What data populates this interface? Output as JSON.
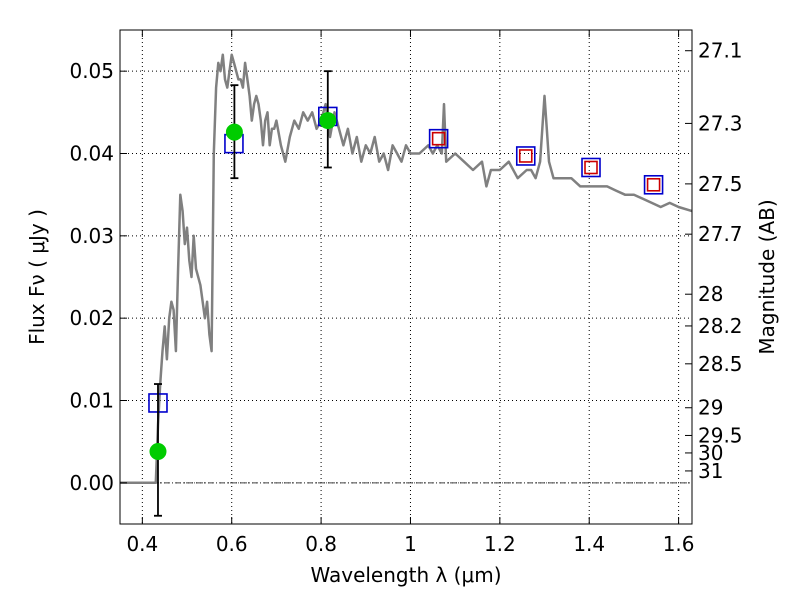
{
  "chart_data": {
    "type": "line",
    "xlabel": "Wavelength  λ (μm)",
    "ylabel": "Flux  Fν  ( μJy )",
    "ylabel_right": "Magnitude (AB)",
    "xlim": [
      0.35,
      1.63
    ],
    "ylim": [
      -0.005,
      0.055
    ],
    "grid": true,
    "x_ticks": [
      {
        "value": 0.4,
        "label": "0.4"
      },
      {
        "value": 0.6,
        "label": "0.6"
      },
      {
        "value": 0.8,
        "label": "0.8"
      },
      {
        "value": 1.0,
        "label": "1"
      },
      {
        "value": 1.2,
        "label": "1.2"
      },
      {
        "value": 1.4,
        "label": "1.4"
      },
      {
        "value": 1.6,
        "label": "1.6"
      }
    ],
    "y_ticks": [
      {
        "value": 0.0,
        "label": "0.00"
      },
      {
        "value": 0.01,
        "label": "0.01"
      },
      {
        "value": 0.02,
        "label": "0.02"
      },
      {
        "value": 0.03,
        "label": "0.03"
      },
      {
        "value": 0.04,
        "label": "0.04"
      },
      {
        "value": 0.05,
        "label": "0.05"
      }
    ],
    "right_ticks": [
      {
        "mag": 27.1,
        "label": "27.1"
      },
      {
        "mag": 27.3,
        "label": "27.3"
      },
      {
        "mag": 27.5,
        "label": "27.5"
      },
      {
        "mag": 27.7,
        "label": "27.7"
      },
      {
        "mag": 28,
        "label": "28"
      },
      {
        "mag": 28.2,
        "label": "28.2"
      },
      {
        "mag": 28.5,
        "label": "28.5"
      },
      {
        "mag": 29,
        "label": "29"
      },
      {
        "mag": 29.5,
        "label": "29.5"
      },
      {
        "mag": 30,
        "label": "30"
      },
      {
        "mag": 31,
        "label": "31"
      }
    ],
    "series": [
      {
        "kind": "model-spectrum",
        "color": "#808080",
        "x": [
          0.35,
          0.43,
          0.435,
          0.44,
          0.445,
          0.45,
          0.455,
          0.46,
          0.465,
          0.47,
          0.475,
          0.48,
          0.485,
          0.49,
          0.495,
          0.5,
          0.505,
          0.51,
          0.515,
          0.52,
          0.53,
          0.54,
          0.545,
          0.55,
          0.555,
          0.56,
          0.565,
          0.57,
          0.575,
          0.58,
          0.585,
          0.59,
          0.595,
          0.6,
          0.605,
          0.61,
          0.615,
          0.62,
          0.625,
          0.63,
          0.635,
          0.64,
          0.645,
          0.65,
          0.655,
          0.66,
          0.665,
          0.67,
          0.675,
          0.68,
          0.685,
          0.69,
          0.695,
          0.7,
          0.71,
          0.72,
          0.73,
          0.74,
          0.75,
          0.76,
          0.77,
          0.78,
          0.79,
          0.8,
          0.81,
          0.82,
          0.83,
          0.84,
          0.85,
          0.86,
          0.87,
          0.88,
          0.89,
          0.9,
          0.91,
          0.92,
          0.93,
          0.94,
          0.95,
          0.96,
          0.97,
          0.98,
          0.99,
          1.0,
          1.02,
          1.04,
          1.05,
          1.06,
          1.07,
          1.075,
          1.08,
          1.1,
          1.12,
          1.14,
          1.16,
          1.17,
          1.18,
          1.2,
          1.22,
          1.24,
          1.26,
          1.27,
          1.28,
          1.29,
          1.3,
          1.305,
          1.31,
          1.32,
          1.34,
          1.36,
          1.38,
          1.4,
          1.42,
          1.44,
          1.46,
          1.48,
          1.5,
          1.52,
          1.54,
          1.56,
          1.58,
          1.6,
          1.63
        ],
        "y": [
          0.0,
          0.0,
          0.007,
          0.012,
          0.016,
          0.019,
          0.015,
          0.02,
          0.022,
          0.021,
          0.016,
          0.026,
          0.035,
          0.033,
          0.029,
          0.031,
          0.027,
          0.025,
          0.03,
          0.026,
          0.024,
          0.02,
          0.022,
          0.018,
          0.016,
          0.04,
          0.048,
          0.051,
          0.05,
          0.052,
          0.049,
          0.048,
          0.05,
          0.052,
          0.051,
          0.05,
          0.049,
          0.049,
          0.048,
          0.051,
          0.049,
          0.047,
          0.044,
          0.046,
          0.047,
          0.046,
          0.044,
          0.041,
          0.044,
          0.045,
          0.041,
          0.043,
          0.043,
          0.044,
          0.041,
          0.039,
          0.042,
          0.044,
          0.043,
          0.045,
          0.044,
          0.045,
          0.043,
          0.044,
          0.046,
          0.042,
          0.045,
          0.043,
          0.041,
          0.043,
          0.04,
          0.042,
          0.039,
          0.041,
          0.04,
          0.042,
          0.039,
          0.04,
          0.038,
          0.041,
          0.04,
          0.039,
          0.041,
          0.04,
          0.04,
          0.041,
          0.04,
          0.041,
          0.04,
          0.046,
          0.039,
          0.04,
          0.039,
          0.038,
          0.039,
          0.036,
          0.038,
          0.038,
          0.039,
          0.037,
          0.038,
          0.038,
          0.037,
          0.039,
          0.047,
          0.043,
          0.039,
          0.037,
          0.037,
          0.037,
          0.036,
          0.036,
          0.036,
          0.036,
          0.0355,
          0.035,
          0.035,
          0.0345,
          0.034,
          0.0335,
          0.034,
          0.0335,
          0.033
        ]
      },
      {
        "kind": "model-photometry",
        "marker": "open-square",
        "color": "#0000cc",
        "x": [
          0.435,
          0.605,
          0.815,
          1.063,
          1.258,
          1.404,
          1.544
        ],
        "y": [
          0.0097,
          0.0412,
          0.0445,
          0.0418,
          0.0397,
          0.0383,
          0.0362
        ]
      },
      {
        "kind": "observed-upper",
        "marker": "small-open-square",
        "color": "#cc0000",
        "x": [
          1.063,
          1.258,
          1.404,
          1.544
        ],
        "y": [
          0.0418,
          0.0397,
          0.0383,
          0.0362
        ]
      },
      {
        "kind": "observed-detections",
        "marker": "filled-circle",
        "color": "#00cc00",
        "x": [
          0.435,
          0.606,
          0.815
        ],
        "y": [
          0.0038,
          0.0426,
          0.044
        ],
        "yerr_low": [
          0.0078,
          0.0056,
          0.0057
        ],
        "yerr_high": [
          0.0082,
          0.0057,
          0.006
        ]
      }
    ]
  }
}
